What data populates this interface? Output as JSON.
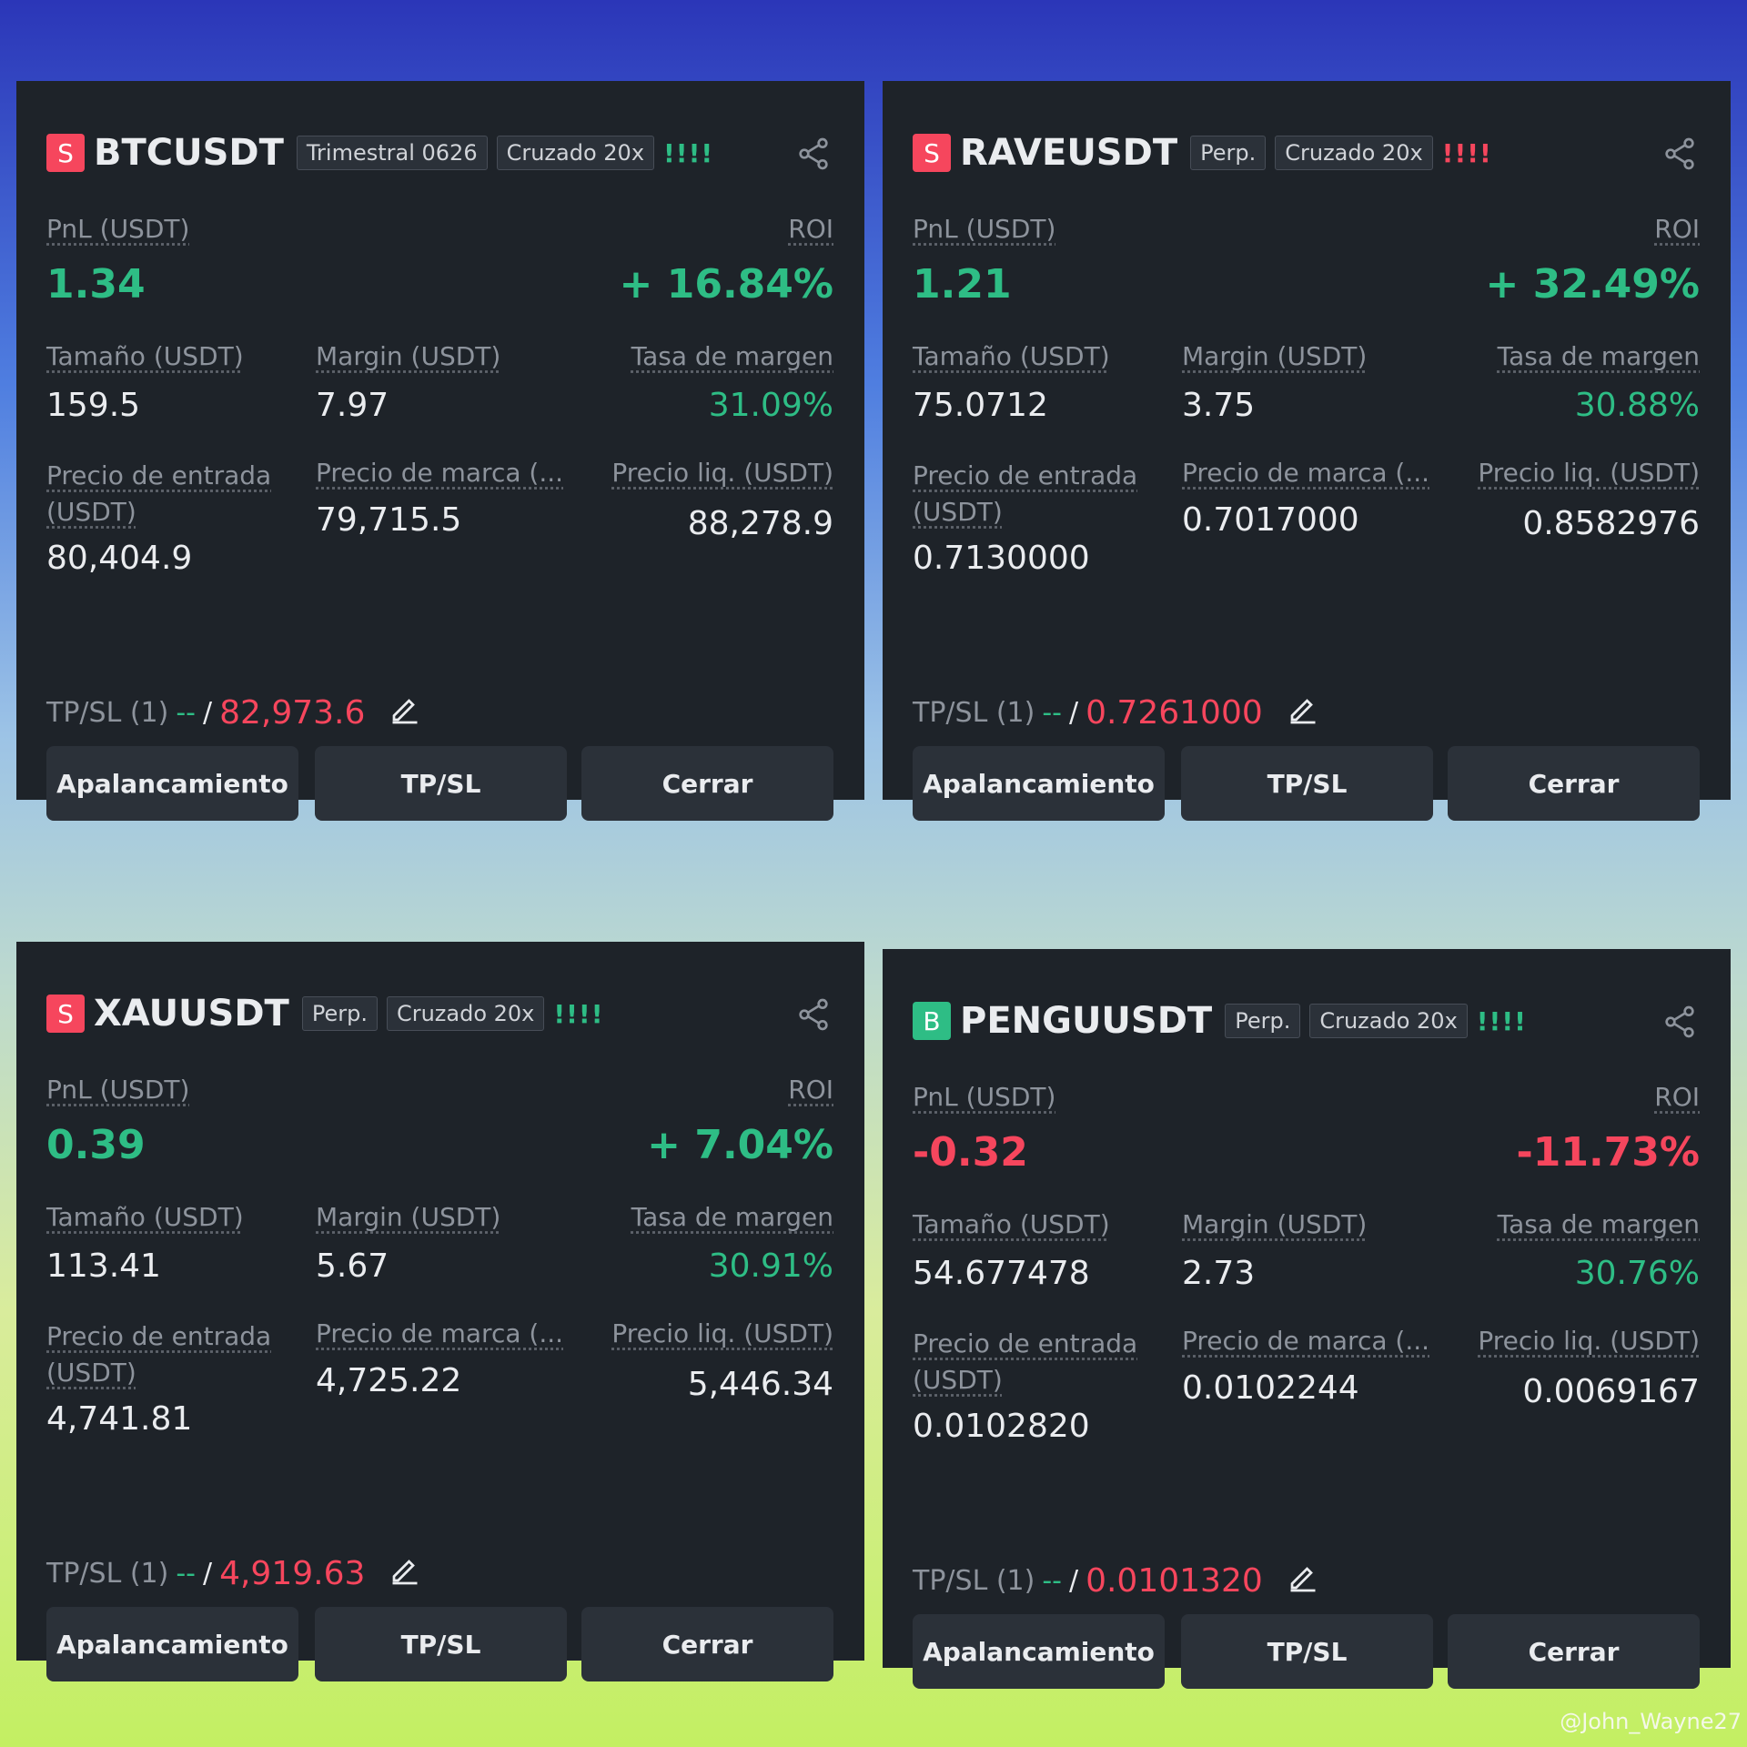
{
  "cards": [
    {
      "side": "S",
      "side_color": "#f6465d",
      "symbol": "BTCUSDT",
      "tags": [
        "Trimestral 0626",
        "Cruzado 20x"
      ],
      "signal": "!!!!",
      "signal_color": "#2ebd85",
      "pnl_label": "PnL (USDT)",
      "pnl": "1.34",
      "roi_label": "ROI",
      "roi": "+ 16.84%",
      "size_label": "Tamaño (USDT)",
      "size": "159.5",
      "margin_label": "Margin (USDT)",
      "margin": "7.97",
      "rate_label": "Tasa de margen",
      "rate": "31.09%",
      "entry_label": "Precio de entrada (USDT)",
      "entry": "80,404.9",
      "mark_label": "Precio de marca (...",
      "mark": "79,715.5",
      "liq_label": "Precio liq. (USDT)",
      "liq": "88,278.9",
      "tpsl_label": "TP/SL (1)",
      "tp": "--",
      "sep": "/",
      "sl": "82,973.6",
      "buttons": [
        "Apalancamiento",
        "TP/SL",
        "Cerrar"
      ]
    },
    {
      "side": "S",
      "side_color": "#f6465d",
      "symbol": "RAVEUSDT",
      "tags": [
        "Perp.",
        "Cruzado 20x"
      ],
      "signal": "!!!!",
      "signal_color": "#f6465d",
      "pnl_label": "PnL (USDT)",
      "pnl": "1.21",
      "roi_label": "ROI",
      "roi": "+ 32.49%",
      "size_label": "Tamaño (USDT)",
      "size": "75.0712",
      "margin_label": "Margin (USDT)",
      "margin": "3.75",
      "rate_label": "Tasa de margen",
      "rate": "30.88%",
      "entry_label": "Precio de entrada (USDT)",
      "entry": "0.7130000",
      "mark_label": "Precio de marca (...",
      "mark": "0.7017000",
      "liq_label": "Precio liq. (USDT)",
      "liq": "0.8582976",
      "tpsl_label": "TP/SL (1)",
      "tp": "--",
      "sep": "/",
      "sl": "0.7261000",
      "buttons": [
        "Apalancamiento",
        "TP/SL",
        "Cerrar"
      ]
    },
    {
      "side": "S",
      "side_color": "#f6465d",
      "symbol": "XAUUSDT",
      "tags": [
        "Perp.",
        "Cruzado 20x"
      ],
      "signal": "!!!!",
      "signal_color": "#2ebd85",
      "pnl_label": "PnL (USDT)",
      "pnl": "0.39",
      "roi_label": "ROI",
      "roi": "+ 7.04%",
      "size_label": "Tamaño (USDT)",
      "size": "113.41",
      "margin_label": "Margin (USDT)",
      "margin": "5.67",
      "rate_label": "Tasa de margen",
      "rate": "30.91%",
      "entry_label": "Precio de entrada (USDT)",
      "entry": "4,741.81",
      "mark_label": "Precio de marca (...",
      "mark": "4,725.22",
      "liq_label": "Precio liq. (USDT)",
      "liq": "5,446.34",
      "tpsl_label": "TP/SL (1)",
      "tp": "--",
      "sep": "/",
      "sl": "4,919.63",
      "buttons": [
        "Apalancamiento",
        "TP/SL",
        "Cerrar"
      ]
    },
    {
      "side": "B",
      "side_color": "#2ebd85",
      "symbol": "PENGUUSDT",
      "tags": [
        "Perp.",
        "Cruzado 20x"
      ],
      "signal": "!!!!",
      "signal_color": "#2ebd85",
      "pnl_label": "PnL (USDT)",
      "pnl": "-0.32",
      "roi_label": "ROI",
      "roi": "-11.73%",
      "size_label": "Tamaño (USDT)",
      "size": "54.677478",
      "margin_label": "Margin (USDT)",
      "margin": "2.73",
      "rate_label": "Tasa de margen",
      "rate": "30.76%",
      "entry_label": "Precio de entrada (USDT)",
      "entry": "0.0102820",
      "mark_label": "Precio de marca (...",
      "mark": "0.0102244",
      "liq_label": "Precio liq. (USDT)",
      "liq": "0.0069167",
      "tpsl_label": "TP/SL (1)",
      "tp": "--",
      "sep": "/",
      "sl": "0.0101320",
      "buttons": [
        "Apalancamiento",
        "TP/SL",
        "Cerrar"
      ]
    }
  ],
  "watermark": "@John_Wayne27"
}
